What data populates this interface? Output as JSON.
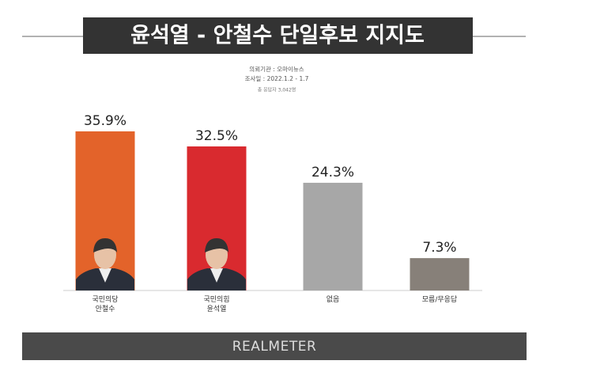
{
  "chart_data": {
    "type": "bar",
    "title": "윤석열 - 안철수 단일후보 지지도",
    "subtitle": [
      "의뢰기관 : 오마이뉴스",
      "조사일 : 2022.1.2 - 1.7",
      "총 응답자 3,042명"
    ],
    "categories": [
      "국민의당\n안철수",
      "국민의힘\n윤석열",
      "없음",
      "모름/무응답"
    ],
    "values": [
      35.9,
      32.5,
      24.3,
      7.3
    ],
    "value_labels": [
      "35.9%",
      "32.5%",
      "24.3%",
      "7.3%"
    ],
    "colors": [
      "#e3632a",
      "#d92a2f",
      "#a7a7a7",
      "#878079"
    ],
    "footer": "REALMETER"
  }
}
